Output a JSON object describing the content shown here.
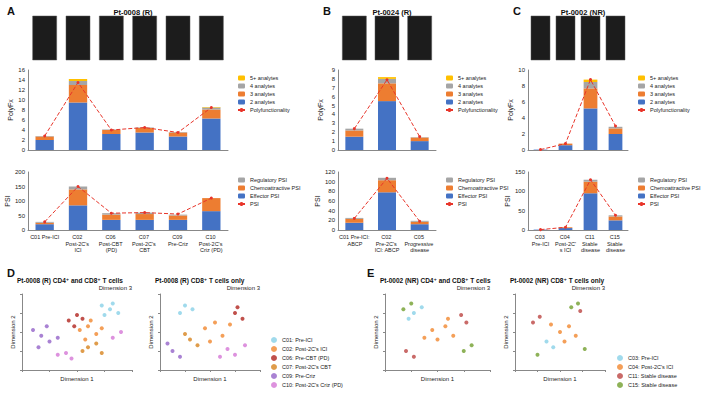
{
  "chart_data": [
    {
      "panel": "A",
      "title": "Pt-0008 (R)",
      "type": "bar",
      "stacked": true,
      "grid": false,
      "legend": "right",
      "tick_labels": "y",
      "y_label": "PolyFx",
      "categories": [
        "C01 Pre-ICI",
        "C02 Post-2C's ICI",
        "C06 Post-CBT (PD)",
        "C07 Post-2C's CBT",
        "C09 Pre-Criz",
        "C10 Post-2C's Criz (PD)"
      ],
      "ylim": [
        0,
        16
      ],
      "yticks": [
        0,
        2,
        4,
        6,
        8,
        10,
        12,
        14,
        16
      ],
      "series": [
        {
          "name": "2 analytes",
          "color": "#4472c4",
          "values": [
            2.0,
            9.5,
            3.2,
            3.5,
            2.7,
            6.3
          ]
        },
        {
          "name": "3 analytes",
          "color": "#ed7d31",
          "values": [
            0.7,
            3.5,
            0.8,
            0.9,
            0.8,
            1.8
          ]
        },
        {
          "name": "4 analytes",
          "color": "#a5a5a5",
          "values": [
            0.1,
            0.8,
            0.1,
            0.1,
            0.1,
            0.4
          ]
        },
        {
          "name": "5+ analytes",
          "color": "#ffc000",
          "values": [
            0,
            0.4,
            0,
            0,
            0,
            0.1
          ]
        },
        {
          "name": "Polyfunctionality",
          "type": "line",
          "color": "#e8352a",
          "line_style": "dashed",
          "marker": "circle",
          "values": [
            2.8,
            13.5,
            4.0,
            4.5,
            3.5,
            8.5
          ]
        }
      ]
    },
    {
      "type": "bar",
      "stacked": true,
      "grid": false,
      "legend": "right",
      "y_label": "PSI",
      "categories": [
        "C01 Pre-ICI",
        "C02 Post-2C's ICI",
        "C06 Post-CBT (PD)",
        "C07 Post-2C's CBT",
        "C09 Pre-Criz",
        "C10 Post-2C's Criz (PD)"
      ],
      "ylim": [
        0,
        200
      ],
      "yticks": [
        0,
        50,
        100,
        150,
        200
      ],
      "series": [
        {
          "name": "Effector PSI",
          "color": "#4472c4",
          "values": [
            20,
            85,
            35,
            35,
            35,
            65
          ]
        },
        {
          "name": "Chemoattractive PSI",
          "color": "#ed7d31",
          "values": [
            5,
            55,
            18,
            20,
            15,
            45
          ]
        },
        {
          "name": "Regulatory PSI",
          "color": "#a5a5a5",
          "values": [
            3,
            10,
            5,
            5,
            3,
            0
          ]
        },
        {
          "name": "PSI",
          "type": "line",
          "color": "#e8352a",
          "line_style": "dashed",
          "marker": "circle",
          "values": [
            28,
            150,
            58,
            60,
            55,
            110
          ]
        }
      ]
    },
    {
      "panel": "B",
      "title": "Pt-0024 (R)",
      "type": "bar",
      "stacked": true,
      "grid": false,
      "legend": "right",
      "tick_labels": "y",
      "y_label": "PolyFx",
      "categories": [
        "C01 Pre-ICI: ABCP",
        "C02 Pre-2C's ICI: ABCP",
        "C05 Progressive disease"
      ],
      "ylim": [
        0,
        9
      ],
      "yticks": [
        0,
        1,
        2,
        3,
        4,
        5,
        6,
        7,
        8,
        9
      ],
      "series": [
        {
          "name": "2 analytes",
          "color": "#4472c4",
          "values": [
            1.5,
            5.5,
            1.0
          ]
        },
        {
          "name": "3 analytes",
          "color": "#ed7d31",
          "values": [
            0.7,
            2.0,
            0.4
          ]
        },
        {
          "name": "4 analytes",
          "color": "#a5a5a5",
          "values": [
            0.2,
            0.5,
            0.05
          ]
        },
        {
          "name": "5+ analytes",
          "color": "#ffc000",
          "values": [
            0,
            0.2,
            0
          ]
        },
        {
          "name": "Polyfunctionality",
          "type": "line",
          "color": "#e8352a",
          "line_style": "dashed",
          "marker": "circle",
          "values": [
            2.4,
            7.9,
            1.5
          ]
        }
      ]
    },
    {
      "type": "bar",
      "stacked": true,
      "grid": false,
      "legend": "right",
      "y_label": "PSI",
      "categories": [
        "C01 Pre-ICI: ABCP",
        "C02 Pre-2C's ICI: ABCP",
        "C05 Progressive disease"
      ],
      "ylim": [
        0,
        120
      ],
      "yticks": [
        0,
        20,
        40,
        60,
        80,
        100,
        120
      ],
      "series": [
        {
          "name": "Effector PSI",
          "color": "#4472c4",
          "values": [
            15,
            78,
            12
          ]
        },
        {
          "name": "Chemoattractive PSI",
          "color": "#ed7d31",
          "values": [
            8,
            25,
            5
          ]
        },
        {
          "name": "Regulatory PSI",
          "color": "#a5a5a5",
          "values": [
            2,
            5,
            2
          ]
        },
        {
          "name": "PSI",
          "type": "line",
          "color": "#e8352a",
          "line_style": "dashed",
          "marker": "circle",
          "values": [
            24,
            107,
            18
          ]
        }
      ]
    },
    {
      "panel": "C",
      "title": "Pt-0002 (NR)",
      "type": "bar",
      "stacked": true,
      "grid": false,
      "legend": "right",
      "tick_labels": "y",
      "y_label": "PolyFx",
      "categories": [
        "C03 Pre-ICI",
        "C04 Post-2C's ICI",
        "C11 Stable disease",
        "C15 Stable disease"
      ],
      "ylim": [
        0,
        10
      ],
      "yticks": [
        0,
        2,
        4,
        6,
        8,
        10
      ],
      "series": [
        {
          "name": "2 analytes",
          "color": "#4472c4",
          "values": [
            0.05,
            0.6,
            5.2,
            2.0
          ]
        },
        {
          "name": "3 analytes",
          "color": "#ed7d31",
          "values": [
            0,
            0.2,
            2.5,
            0.7
          ]
        },
        {
          "name": "4 analytes",
          "color": "#a5a5a5",
          "values": [
            0,
            0,
            0.8,
            0.2
          ]
        },
        {
          "name": "5+ analytes",
          "color": "#ffc000",
          "values": [
            0,
            0,
            0.3,
            0
          ]
        },
        {
          "name": "Polyfunctionality",
          "type": "line",
          "color": "#e8352a",
          "line_style": "dashed",
          "marker": "circle",
          "values": [
            0.05,
            0.8,
            8.8,
            3.0
          ]
        }
      ]
    },
    {
      "type": "bar",
      "stacked": true,
      "grid": false,
      "legend": "right",
      "y_label": "PSI",
      "categories": [
        "C03 Pre-ICI",
        "C04 Post-2C's ICI",
        "C11 Stable disease",
        "C15 Stable disease"
      ],
      "ylim": [
        0,
        150
      ],
      "yticks": [
        0,
        50,
        100,
        150
      ],
      "series": [
        {
          "name": "Effector PSI",
          "color": "#4472c4",
          "values": [
            1,
            5,
            95,
            25
          ]
        },
        {
          "name": "Chemoattractive PSI",
          "color": "#ed7d31",
          "values": [
            0,
            2,
            30,
            10
          ]
        },
        {
          "name": "Regulatory PSI",
          "color": "#a5a5a5",
          "values": [
            0,
            0,
            5,
            3
          ]
        },
        {
          "name": "PSI",
          "type": "line",
          "color": "#e8352a",
          "line_style": "dashed",
          "marker": "circle",
          "values": [
            1,
            7,
            130,
            38
          ]
        }
      ]
    },
    {
      "panel": "D",
      "title": "Pt-0008 (R) CD4⁺ and CD8⁺ T cells",
      "type": "scatter",
      "grid": false,
      "tick_labels": false,
      "x_label": "Dimension 1",
      "y_label": "Dimension 2",
      "z_label": "Dimension 3",
      "xlim": [
        -40,
        40
      ],
      "xticks": [
        -40,
        -20,
        0,
        20,
        40
      ],
      "ylim": [
        -40,
        40
      ],
      "yticks": [
        -40,
        -20,
        0,
        20,
        40
      ],
      "series": [
        {
          "name": "C01: Pre-ICI",
          "color": "#8fd3e9",
          "values": [
            [
              18,
              28
            ],
            [
              24,
              24
            ],
            [
              30,
              20
            ],
            [
              20,
              18
            ],
            [
              26,
              30
            ]
          ]
        },
        {
          "name": "C02: Post-2C's ICI",
          "color": "#f28e3b",
          "values": [
            [
              2,
              2
            ],
            [
              8,
              6
            ],
            [
              14,
              -2
            ],
            [
              6,
              -8
            ],
            [
              18,
              4
            ],
            [
              10,
              12
            ]
          ]
        },
        {
          "name": "C06: Pre-CBT (PD)",
          "color": "#b5312b",
          "values": [
            [
              -6,
              12
            ],
            [
              0,
              18
            ],
            [
              -2,
              6
            ],
            [
              4,
              14
            ]
          ]
        },
        {
          "name": "C07: Post-2C's CBT",
          "color": "#d98b2b",
          "values": [
            [
              8,
              -16
            ],
            [
              14,
              -12
            ],
            [
              4,
              -20
            ],
            [
              18,
              -22
            ]
          ]
        },
        {
          "name": "C09: Pre-Criz",
          "color": "#9a6ccb",
          "values": [
            [
              -26,
              -4
            ],
            [
              -32,
              2
            ],
            [
              -20,
              -10
            ],
            [
              -28,
              -16
            ],
            [
              -14,
              -6
            ],
            [
              -22,
              6
            ]
          ]
        },
        {
          "name": "C10: Post-2C's Criz (PD)",
          "color": "#d77fd8",
          "values": [
            [
              -8,
              -22
            ],
            [
              -4,
              -28
            ],
            [
              -14,
              -24
            ],
            [
              26,
              -6
            ],
            [
              32,
              0
            ]
          ]
        }
      ]
    },
    {
      "title": "Pt-0008 (R) CD8⁺ T cells only",
      "type": "scatter",
      "grid": false,
      "tick_labels": false,
      "legend": "lower right",
      "x_label": "Dimension 1",
      "y_label": "Dimension 2",
      "z_label": "Dimension 3",
      "xlim": [
        -40,
        40
      ],
      "xticks": [
        -40,
        -20,
        0,
        20,
        40
      ],
      "ylim": [
        -40,
        40
      ],
      "yticks": [
        -40,
        -20,
        0,
        20,
        40
      ],
      "series": [
        {
          "name": "C01: Pre-ICI",
          "color": "#8fd3e9",
          "values": [
            [
              -20,
              28
            ],
            [
              -14,
              24
            ],
            [
              -24,
              20
            ]
          ]
        },
        {
          "name": "C02: Post-2C's ICI",
          "color": "#f28e3b",
          "values": [
            [
              -4,
              4
            ],
            [
              4,
              10
            ],
            [
              10,
              -4
            ],
            [
              0,
              -10
            ],
            [
              16,
              8
            ]
          ]
        },
        {
          "name": "C06: Pre-CBT (PD)",
          "color": "#b5312b",
          "values": [
            [
              20,
              20
            ],
            [
              26,
              14
            ],
            [
              22,
              26
            ]
          ]
        },
        {
          "name": "C07: Post-2C's CBT",
          "color": "#d98b2b",
          "values": [
            [
              -16,
              -8
            ],
            [
              -10,
              -14
            ],
            [
              -20,
              -2
            ]
          ]
        },
        {
          "name": "C09: Pre-Criz",
          "color": "#9a6ccb",
          "values": [
            [
              -30,
              -20
            ],
            [
              -24,
              -26
            ],
            [
              -34,
              -12
            ]
          ]
        },
        {
          "name": "C10: Post-2C's Criz (PD)",
          "color": "#d77fd8",
          "values": [
            [
              14,
              -18
            ],
            [
              20,
              -24
            ],
            [
              8,
              -26
            ],
            [
              28,
              -14
            ]
          ]
        }
      ]
    },
    {
      "panel": "E",
      "title": "Pt-0002 (NR) CD4⁺ and CD8⁺ T cells",
      "type": "scatter",
      "grid": false,
      "tick_labels": false,
      "x_label": "Dimension 1",
      "y_label": "Dimension 2",
      "z_label": "Dimension 3",
      "xlim": [
        -40,
        40
      ],
      "xticks": [
        -40,
        -20,
        0,
        20,
        40
      ],
      "ylim": [
        -40,
        40
      ],
      "yticks": [
        -40,
        -20,
        0,
        20,
        40
      ],
      "series": [
        {
          "name": "C03: Pre-ICI",
          "color": "#8fd3e9",
          "values": [
            [
              -18,
              20
            ],
            [
              -12,
              26
            ],
            [
              -22,
              14
            ]
          ]
        },
        {
          "name": "C04: Post-2C's ICI",
          "color": "#f28e3b",
          "values": [
            [
              -4,
              2
            ],
            [
              6,
              6
            ],
            [
              0,
              -8
            ],
            [
              12,
              -4
            ],
            [
              -10,
              -6
            ],
            [
              8,
              14
            ]
          ]
        },
        {
          "name": "C11: Stable disease",
          "color": "#c0504d",
          "values": [
            [
              18,
              18
            ],
            [
              22,
              10
            ],
            [
              -24,
              -20
            ],
            [
              -18,
              -26
            ]
          ]
        },
        {
          "name": "C15: Stable disease",
          "color": "#7aa43b",
          "values": [
            [
              -20,
              30
            ],
            [
              -26,
              24
            ],
            [
              20,
              -20
            ],
            [
              26,
              -14
            ]
          ]
        }
      ]
    },
    {
      "title": "Pt-0002 (NR) CD8⁺ T cells only",
      "type": "scatter",
      "grid": false,
      "tick_labels": false,
      "legend": "lower right",
      "x_label": "Dimension 1",
      "y_label": "Dimension 2",
      "z_label": "Dimension 3",
      "xlim": [
        -40,
        40
      ],
      "xticks": [
        -40,
        -20,
        0,
        20,
        40
      ],
      "ylim": [
        -40,
        40
      ],
      "yticks": [
        -40,
        -20,
        0,
        20,
        40
      ],
      "series": [
        {
          "name": "C03: Pre-ICI",
          "color": "#8fd3e9",
          "values": [
            [
              -12,
              -10
            ],
            [
              -6,
              -16
            ]
          ]
        },
        {
          "name": "C04: Post-2C's ICI",
          "color": "#f28e3b",
          "values": [
            [
              0,
              0
            ],
            [
              8,
              6
            ],
            [
              -8,
              8
            ],
            [
              4,
              -10
            ],
            [
              14,
              -4
            ]
          ]
        },
        {
          "name": "C11: Stable disease",
          "color": "#c0504d",
          "values": [
            [
              -18,
              16
            ],
            [
              -24,
              10
            ],
            [
              18,
              22
            ]
          ]
        },
        {
          "name": "C15: Stable disease",
          "color": "#7aa43b",
          "values": [
            [
              10,
              26
            ],
            [
              16,
              30
            ],
            [
              -20,
              -24
            ],
            [
              22,
              -18
            ]
          ]
        }
      ]
    }
  ]
}
